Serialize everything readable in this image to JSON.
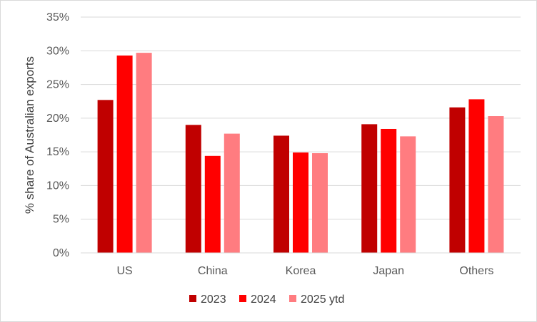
{
  "chart_data": {
    "type": "bar",
    "title": "",
    "xlabel": "",
    "ylabel": "% share of Australian exports",
    "ylim": [
      0,
      35
    ],
    "ytick_step": 5,
    "ytick_suffix": "%",
    "grid": true,
    "legend_position": "bottom",
    "categories": [
      "US",
      "China",
      "Korea",
      "Japan",
      "Others"
    ],
    "series": [
      {
        "name": "2023",
        "color": "#c00000",
        "values": [
          22.7,
          19.0,
          17.4,
          19.1,
          21.6
        ]
      },
      {
        "name": "2024",
        "color": "#ff0000",
        "values": [
          29.3,
          14.4,
          14.9,
          18.4,
          22.8
        ]
      },
      {
        "name": "2025 ytd",
        "color": "#ff7c80",
        "values": [
          29.7,
          17.7,
          14.8,
          17.3,
          20.3
        ]
      }
    ]
  }
}
